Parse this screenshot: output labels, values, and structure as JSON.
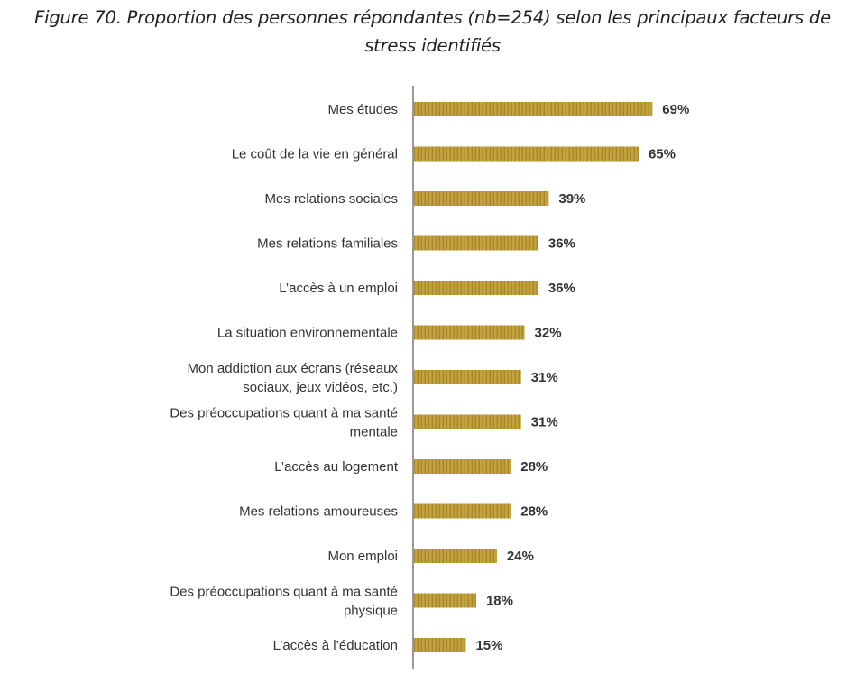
{
  "figure": {
    "caption_line1": "Figure 70. Proportion des personnes répondantes (nb=254) selon les principaux facteurs de",
    "caption_line2": "stress identifiés"
  },
  "chart_data": {
    "type": "bar",
    "orientation": "horizontal",
    "title": "Figure 70. Proportion des personnes répondantes (nb=254) selon les principaux facteurs de stress identifiés",
    "categories": [
      [
        "Mes études"
      ],
      [
        "Le coût de la vie en général"
      ],
      [
        "Mes relations sociales"
      ],
      [
        "Mes relations familiales"
      ],
      [
        "L’accès à un emploi"
      ],
      [
        "La situation environnementale"
      ],
      [
        "Mon addiction aux écrans (réseaux",
        "sociaux, jeux vidéos, etc.)"
      ],
      [
        "Des préoccupations quant à ma santé",
        "mentale"
      ],
      [
        "L’accès au logement"
      ],
      [
        "Mes relations amoureuses"
      ],
      [
        "Mon emploi"
      ],
      [
        "Des préoccupations quant à ma santé",
        "physique"
      ],
      [
        "L’accès à l’éducation"
      ]
    ],
    "values": [
      69,
      65,
      39,
      36,
      36,
      32,
      31,
      31,
      28,
      28,
      24,
      18,
      15
    ],
    "value_labels": [
      "69%",
      "65%",
      "39%",
      "36%",
      "36%",
      "32%",
      "31%",
      "31%",
      "28%",
      "28%",
      "24%",
      "18%",
      "15%"
    ],
    "unit": "%",
    "xlim": [
      0,
      100
    ],
    "grid": false,
    "legend": "none",
    "bar_color": "#c4a23c",
    "bar_stripe_color": "#8e7120",
    "axis_color": "#9a9a9a"
  }
}
